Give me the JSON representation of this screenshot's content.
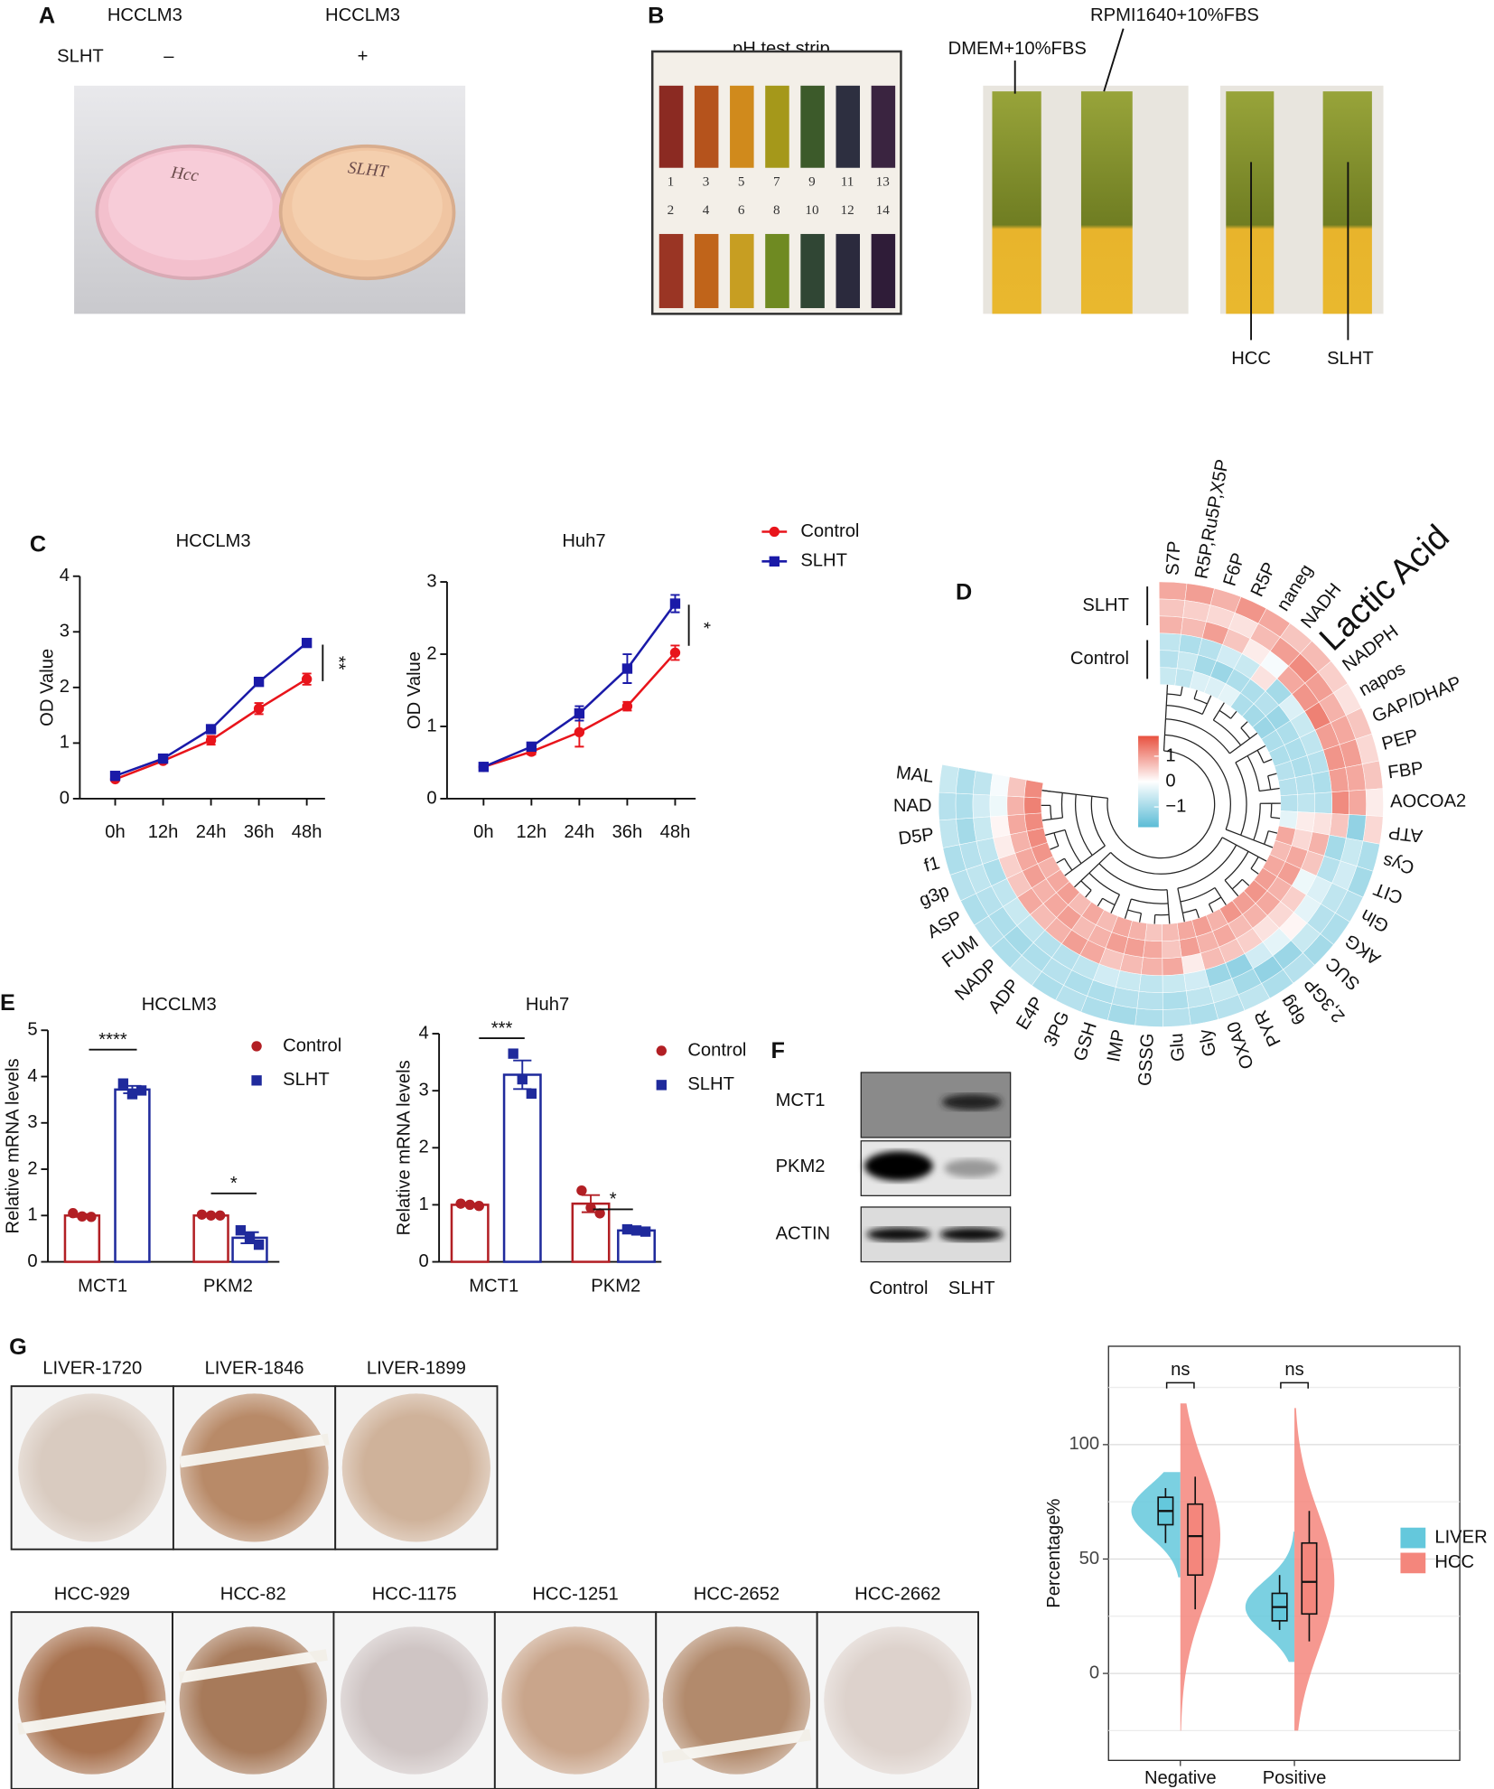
{
  "panel_labels": [
    "A",
    "B",
    "C",
    "D",
    "E",
    "F",
    "G"
  ],
  "panel_a": {
    "cell_line_labels": [
      "HCCLM3",
      "HCCLM3"
    ],
    "treatment_label": "SLHT",
    "treatment_marks": [
      "–",
      "+"
    ],
    "dish_labels": [
      "Hcc",
      "SLHT"
    ]
  },
  "panel_b": {
    "strip_title": "pH test strip",
    "strip_numbers": [
      "1",
      "2",
      "3",
      "4",
      "5",
      "6",
      "7",
      "8",
      "9",
      "10",
      "11",
      "12",
      "13",
      "14"
    ],
    "media_labels": [
      "DMEM+10%FBS",
      "RPMI1640+10%FBS"
    ],
    "sample_labels": [
      "HCC",
      "SLHT"
    ]
  },
  "panel_f": {
    "proteins": [
      "MCT1",
      "PKM2",
      "ACTIN"
    ],
    "groups": [
      "Control",
      "SLHT"
    ]
  },
  "panel_g": {
    "liver_samples": [
      "LIVER-1720",
      "LIVER-1846",
      "LIVER-1899"
    ],
    "hcc_samples": [
      "HCC-929",
      "HCC-82",
      "HCC-1175",
      "HCC-1251",
      "HCC-2652",
      "HCC-2662"
    ]
  },
  "chart_data": [
    {
      "type": "line",
      "title": "HCCLM3",
      "y_label": "OD Value",
      "categories": [
        "0h",
        "12h",
        "24h",
        "36h",
        "48h"
      ],
      "series": [
        {
          "name": "Control",
          "color": "#e8141b",
          "marker": "circle",
          "values": [
            0.35,
            0.68,
            1.05,
            1.62,
            2.15
          ],
          "errors": [
            0.03,
            0.04,
            0.08,
            0.1,
            0.1
          ]
        },
        {
          "name": "SLHT",
          "color": "#1a1aa8",
          "marker": "square",
          "values": [
            0.41,
            0.72,
            1.25,
            2.1,
            2.8
          ],
          "errors": [
            0.03,
            0.03,
            0.05,
            0.07,
            0.07
          ]
        }
      ],
      "ylim": [
        0,
        4
      ],
      "yticks": [
        0,
        1,
        2,
        3,
        4
      ],
      "significance": "**"
    },
    {
      "type": "line",
      "title": "Huh7",
      "y_label": "OD Value",
      "categories": [
        "0h",
        "12h",
        "24h",
        "36h",
        "48h"
      ],
      "series": [
        {
          "color": "#e8141b",
          "marker": "circle",
          "values": [
            0.44,
            0.65,
            0.92,
            1.28,
            2.02
          ],
          "errors": [
            0.02,
            0.04,
            0.2,
            0.06,
            0.1
          ]
        },
        {
          "color": "#1a1aa8",
          "marker": "square",
          "values": [
            0.44,
            0.72,
            1.18,
            1.8,
            2.7
          ],
          "errors": [
            0.02,
            0.05,
            0.1,
            0.2,
            0.12
          ]
        }
      ],
      "ylim": [
        0,
        3
      ],
      "yticks": [
        0,
        1,
        2,
        3
      ],
      "significance": "*"
    },
    {
      "type": "circular_heatmap",
      "categories": [
        "S7P",
        "R5P,Ru5P,X5P",
        "F6P",
        "R5P",
        "naneg",
        "NADH",
        "Lactic Acid",
        "NADPH",
        "napos",
        "GAP/DHAP",
        "PEP",
        "FBP",
        "AOCOA2",
        "ATP",
        "Cys",
        "CIT",
        "Gln",
        "AKG",
        "SUC",
        "2,3GP",
        "6pg",
        "PYR",
        "OXA0",
        "Gly",
        "Glu",
        "GSSG",
        "IMP",
        "GSH",
        "3PG",
        "E4P",
        "ADP",
        "NADP",
        "FUM",
        "ASP",
        "g3p",
        "f1",
        "D5P",
        "NAD",
        "MAL"
      ],
      "highlight": "Lactic Acid",
      "highlight_color": "#e8141b",
      "series": [
        {
          "name": "SLHT",
          "values": [
            [
              0.9,
              0.6,
              0.8
            ],
            [
              1.0,
              0.5,
              0.7
            ],
            [
              0.8,
              0.4,
              1.0
            ],
            [
              1.1,
              0.3,
              0.6
            ],
            [
              0.9,
              0.7,
              0.2
            ],
            [
              0.6,
              1.0,
              -0.1
            ],
            [
              0.7,
              1.2,
              0.9
            ],
            [
              0.5,
              1.0,
              1.1
            ],
            [
              0.3,
              0.8,
              1.3
            ],
            [
              0.6,
              0.9,
              1.0
            ],
            [
              0.4,
              1.0,
              1.1
            ],
            [
              0.6,
              0.9,
              1.0
            ],
            [
              0.2,
              0.9,
              1.2
            ],
            [
              0.4,
              -1.2,
              0.6
            ],
            [
              -0.9,
              -0.6,
              -1.0
            ],
            [
              -1.0,
              -0.5,
              -0.8
            ],
            [
              -0.8,
              -0.7,
              -0.4
            ],
            [
              -0.9,
              -0.8,
              -0.3
            ],
            [
              -1.0,
              -0.6,
              0.1
            ],
            [
              -0.8,
              -1.1,
              -0.3
            ],
            [
              -0.9,
              -1.2,
              -0.5
            ],
            [
              -0.7,
              -1.0,
              -1.2
            ],
            [
              -0.8,
              -0.6,
              -1.1
            ],
            [
              -0.9,
              -0.7,
              -0.5
            ],
            [
              -0.8,
              -0.9,
              -0.6
            ],
            [
              -0.9,
              -0.8,
              -0.7
            ],
            [
              -1.0,
              -0.8,
              -0.6
            ],
            [
              -0.9,
              -0.9,
              -0.5
            ],
            [
              -0.8,
              -0.9,
              -0.7
            ],
            [
              -0.9,
              -0.8,
              -0.8
            ],
            [
              -0.7,
              -0.9,
              -0.8
            ],
            [
              -0.9,
              -1.0,
              -0.7
            ],
            [
              -0.8,
              -0.9,
              -0.6
            ],
            [
              -0.9,
              -0.8,
              -0.7
            ],
            [
              -0.8,
              -0.7,
              -0.9
            ],
            [
              -0.9,
              -0.8,
              -0.7
            ],
            [
              -0.7,
              -1.0,
              -0.6
            ],
            [
              -0.8,
              -0.9,
              -0.5
            ],
            [
              -0.6,
              -0.9,
              -0.7
            ]
          ]
        },
        {
          "name": "Control",
          "values": [
            [
              -0.7,
              -0.8,
              -0.6
            ],
            [
              -0.9,
              -0.6,
              -0.7
            ],
            [
              -0.8,
              -1.0,
              -0.4
            ],
            [
              -0.5,
              -1.1,
              -0.4
            ],
            [
              -0.6,
              -0.9,
              -0.3
            ],
            [
              0.3,
              -0.9,
              -0.9
            ],
            [
              -1.0,
              -0.8,
              -1.0
            ],
            [
              -0.4,
              -1.1,
              -1.1
            ],
            [
              -0.6,
              -0.9,
              -0.9
            ],
            [
              -0.7,
              -0.9,
              -0.9
            ],
            [
              -0.8,
              -0.9,
              -0.8
            ],
            [
              -0.9,
              -0.8,
              -0.8
            ],
            [
              -0.8,
              -0.7,
              -0.8
            ],
            [
              0.3,
              0.2,
              -0.3
            ],
            [
              0.8,
              0.4,
              0.9
            ],
            [
              0.6,
              0.9,
              0.7
            ],
            [
              -0.2,
              1.0,
              0.9
            ],
            [
              0.5,
              0.8,
              1.0
            ],
            [
              0.4,
              0.9,
              1.1
            ],
            [
              0.3,
              0.8,
              1.0
            ],
            [
              0.5,
              0.7,
              1.1
            ],
            [
              0.6,
              0.9,
              0.8
            ],
            [
              0.7,
              0.8,
              1.0
            ],
            [
              0.2,
              1.0,
              0.9
            ],
            [
              0.9,
              0.6,
              0.7
            ],
            [
              0.8,
              0.9,
              0.6
            ],
            [
              0.7,
              1.0,
              0.8
            ],
            [
              0.6,
              1.0,
              0.9
            ],
            [
              0.9,
              0.8,
              0.7
            ],
            [
              1.0,
              0.7,
              0.9
            ],
            [
              0.8,
              1.0,
              0.7
            ],
            [
              0.7,
              0.9,
              1.0
            ],
            [
              0.9,
              0.8,
              0.9
            ],
            [
              0.6,
              1.0,
              0.8
            ],
            [
              0.5,
              0.9,
              1.1
            ],
            [
              0.2,
              0.8,
              1.2
            ],
            [
              0.1,
              0.9,
              1.2
            ],
            [
              -0.2,
              0.8,
              1.3
            ],
            [
              -0.1,
              0.6,
              1.2
            ]
          ]
        }
      ],
      "colors": [
        "#5bbcd6",
        "#ffffff",
        "#e8513f"
      ],
      "clim": [
        -1.8,
        1.8
      ],
      "colorbar_ticks": [
        1,
        0,
        {
          "value": -1,
          "label": "−1"
        }
      ]
    },
    {
      "type": "bar",
      "title": "HCCLM3",
      "y_label": "Relative mRNA levels",
      "categories": [
        "MCT1",
        "PKM2"
      ],
      "series": [
        {
          "name": "Control",
          "color": "#b21f24",
          "marker": "circle",
          "values": [
            1.0,
            1.0
          ],
          "errors": [
            0.03,
            0.02
          ],
          "points": [
            [
              1.05,
              0.98,
              0.97
            ],
            [
              1.02,
              1.0,
              1.0
            ]
          ]
        },
        {
          "name": "SLHT",
          "color": "#1f2a9c",
          "marker": "square",
          "values": [
            3.72,
            0.52
          ],
          "errors": [
            0.08,
            0.12
          ],
          "points": [
            [
              3.85,
              3.62,
              3.7
            ],
            [
              0.68,
              0.52,
              0.37
            ]
          ]
        }
      ],
      "ylim": [
        0,
        5
      ],
      "yticks": [
        0,
        1,
        2,
        3,
        4,
        5
      ],
      "significance": [
        "****",
        "*"
      ]
    },
    {
      "type": "bar",
      "title": "Huh7",
      "y_label": "Relative mRNA levels",
      "categories": [
        "MCT1",
        "PKM2"
      ],
      "series": [
        {
          "name": "Control",
          "color": "#b21f24",
          "marker": "circle",
          "values": [
            1.0,
            1.02
          ],
          "errors": [
            0.02,
            0.15
          ],
          "points": [
            [
              1.02,
              1.0,
              0.98
            ],
            [
              1.25,
              0.95,
              0.85
            ]
          ]
        },
        {
          "name": "SLHT",
          "color": "#1f2a9c",
          "marker": "square",
          "values": [
            3.28,
            0.55
          ],
          "errors": [
            0.25,
            0.03
          ],
          "points": [
            [
              3.65,
              3.2,
              2.95
            ],
            [
              0.57,
              0.55,
              0.53
            ]
          ]
        }
      ],
      "ylim": [
        0,
        4
      ],
      "yticks": [
        0,
        1,
        2,
        3,
        4
      ],
      "significance": [
        "***",
        "*"
      ]
    },
    {
      "type": "violin",
      "y_label": "Percentage%",
      "categories": [
        "Negative",
        "Positive"
      ],
      "series": [
        {
          "name": "LIVER",
          "color": "#64c8dc",
          "box_stats": [
            [
              57,
              65,
              71,
              77,
              81
            ],
            [
              19,
              23,
              29,
              35,
              43
            ]
          ],
          "range": [
            [
              42,
              88
            ],
            [
              5,
              62
            ]
          ]
        },
        {
          "name": "HCC",
          "color": "#f4867c",
          "box_stats": [
            [
              28,
              43,
              60,
              74,
              86
            ],
            [
              14,
              26,
              40,
              57,
              71
            ]
          ],
          "range": [
            [
              -25,
              118
            ],
            [
              -25,
              116
            ]
          ]
        }
      ],
      "ylim": [
        -38,
        143
      ],
      "yticks": [
        0,
        50,
        100
      ],
      "minor_grid": [
        -25,
        25,
        75,
        125
      ],
      "grid": true,
      "significance": [
        "ns",
        "ns"
      ]
    }
  ]
}
